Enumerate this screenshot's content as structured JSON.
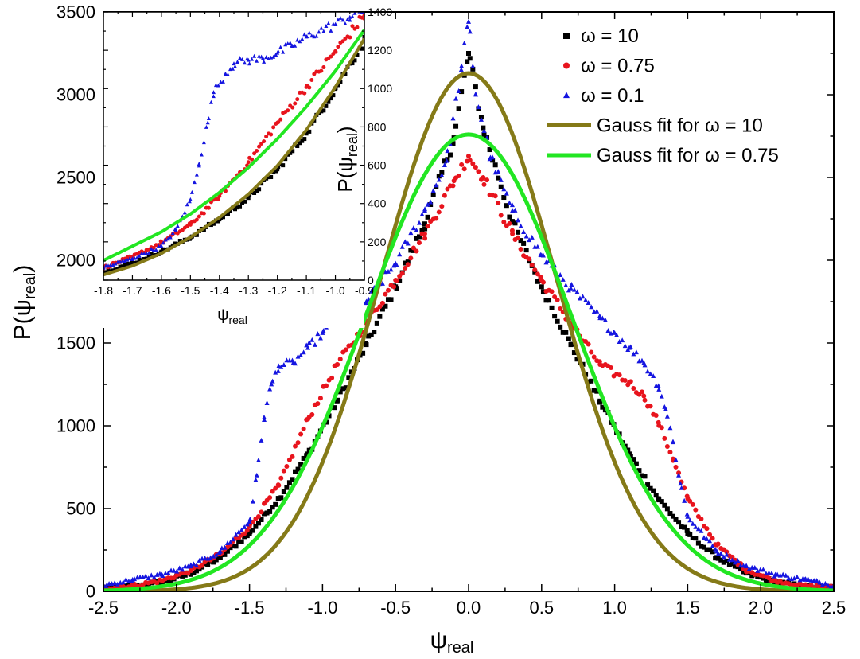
{
  "chart_data": [
    {
      "panel": "main",
      "type": "scatter",
      "xlabel": "ψ",
      "xlabel_sub": "real",
      "ylabel": "P(ψ",
      "ylabel_sub": "real",
      "ylabel_close": ")",
      "xlim": [
        -2.5,
        2.5
      ],
      "ylim": [
        0,
        3500
      ],
      "xticks": [
        "-2.5",
        "-2.0",
        "-1.5",
        "-1.0",
        "-0.5",
        "0.0",
        "0.5",
        "1.0",
        "1.5",
        "2.0",
        "2.5"
      ],
      "yticks": [
        "0",
        "500",
        "1000",
        "1500",
        "2000",
        "2500",
        "3000",
        "3500"
      ],
      "legend_position": "top-right",
      "series": [
        {
          "name": "ω = 10",
          "marker": "square",
          "color": "#000000",
          "points": [
            [
              -2.5,
              22
            ],
            [
              -2.3,
              28
            ],
            [
              -2.1,
              55
            ],
            [
              -1.9,
              110
            ],
            [
              -1.7,
              205
            ],
            [
              -1.5,
              350
            ],
            [
              -1.3,
              560
            ],
            [
              -1.1,
              830
            ],
            [
              -0.9,
              1150
            ],
            [
              -0.7,
              1490
            ],
            [
              -0.5,
              1840
            ],
            [
              -0.3,
              2220
            ],
            [
              -0.1,
              2740
            ],
            [
              0.0,
              3250
            ],
            [
              0.1,
              2800
            ],
            [
              0.3,
              2230
            ],
            [
              0.5,
              1840
            ],
            [
              0.7,
              1490
            ],
            [
              0.9,
              1150
            ],
            [
              1.1,
              830
            ],
            [
              1.3,
              560
            ],
            [
              1.5,
              350
            ],
            [
              1.7,
              205
            ],
            [
              1.9,
              110
            ],
            [
              2.1,
              55
            ],
            [
              2.3,
              28
            ],
            [
              2.5,
              22
            ]
          ]
        },
        {
          "name": "ω = 0.75",
          "marker": "circle",
          "color": "#e8141d",
          "points": [
            [
              -2.5,
              22
            ],
            [
              -2.3,
              33
            ],
            [
              -2.1,
              65
            ],
            [
              -1.9,
              125
            ],
            [
              -1.7,
              225
            ],
            [
              -1.5,
              390
            ],
            [
              -1.3,
              640
            ],
            [
              -1.1,
              1040
            ],
            [
              -0.9,
              1370
            ],
            [
              -0.7,
              1620
            ],
            [
              -0.5,
              1880
            ],
            [
              -0.3,
              2160
            ],
            [
              -0.1,
              2480
            ],
            [
              0.0,
              2630
            ],
            [
              0.1,
              2500
            ],
            [
              0.3,
              2160
            ],
            [
              0.5,
              1880
            ],
            [
              0.7,
              1620
            ],
            [
              0.9,
              1370
            ],
            [
              1.1,
              1260
            ],
            [
              1.2,
              1180
            ],
            [
              1.3,
              1020
            ],
            [
              1.4,
              800
            ],
            [
              1.5,
              560
            ],
            [
              1.7,
              280
            ],
            [
              1.9,
              130
            ],
            [
              2.1,
              65
            ],
            [
              2.3,
              33
            ],
            [
              2.5,
              22
            ]
          ]
        },
        {
          "name": "ω = 0.1",
          "marker": "triangle",
          "color": "#1515e0",
          "points": [
            [
              -2.5,
              35
            ],
            [
              -2.3,
              70
            ],
            [
              -2.1,
              100
            ],
            [
              -1.9,
              150
            ],
            [
              -1.7,
              240
            ],
            [
              -1.5,
              420
            ],
            [
              -1.45,
              700
            ],
            [
              -1.4,
              1050
            ],
            [
              -1.35,
              1250
            ],
            [
              -1.3,
              1360
            ],
            [
              -1.2,
              1380
            ],
            [
              -1.1,
              1470
            ],
            [
              -1.0,
              1560
            ],
            [
              -0.9,
              1640
            ],
            [
              -0.7,
              1750
            ],
            [
              -0.5,
              1980
            ],
            [
              -0.3,
              2300
            ],
            [
              -0.15,
              2600
            ],
            [
              -0.05,
              3150
            ],
            [
              0.0,
              3440
            ],
            [
              0.05,
              3000
            ],
            [
              0.15,
              2620
            ],
            [
              0.3,
              2300
            ],
            [
              0.5,
              2030
            ],
            [
              0.7,
              1830
            ],
            [
              0.9,
              1650
            ],
            [
              1.0,
              1560
            ],
            [
              1.1,
              1470
            ],
            [
              1.2,
              1380
            ],
            [
              1.3,
              1240
            ],
            [
              1.35,
              1100
            ],
            [
              1.4,
              900
            ],
            [
              1.45,
              650
            ],
            [
              1.5,
              450
            ],
            [
              1.7,
              240
            ],
            [
              1.9,
              150
            ],
            [
              2.1,
              100
            ],
            [
              2.3,
              70
            ],
            [
              2.5,
              35
            ]
          ]
        },
        {
          "name": "Gauss fit for ω = 10",
          "type": "line",
          "color": "#857a18",
          "gauss": {
            "amplitude": 3130,
            "mean": 0.0,
            "sigma": 0.6
          }
        },
        {
          "name": "Gauss fit for ω = 0.75",
          "type": "line",
          "color": "#22e622",
          "gauss": {
            "amplitude": 2760,
            "mean": 0.0,
            "sigma": 0.7
          }
        }
      ]
    },
    {
      "panel": "inset",
      "type": "scatter",
      "xlabel": "ψ",
      "xlabel_sub": "real",
      "ylabel": "P(ψ",
      "ylabel_sub": "real",
      "ylabel_close": ")",
      "xlim": [
        -1.8,
        -0.9
      ],
      "ylim": [
        0,
        1500
      ],
      "xticks": [
        "-1.8",
        "-1.7",
        "-1.6",
        "-1.5",
        "-1.4",
        "-1.3",
        "-1.2",
        "-1.1",
        "-1.0",
        "-0.9"
      ],
      "yticks": [
        "0",
        "200",
        "400",
        "600",
        "800",
        "1000",
        "1200",
        "1400"
      ],
      "series_refs": [
        "ω = 10",
        "ω = 0.75",
        "ω = 0.1",
        "Gauss fit for ω = 10",
        "Gauss fit for ω = 0.75"
      ],
      "series": [
        {
          "name": "ω = 10",
          "marker": "square",
          "color": "#000000",
          "points": [
            [
              -1.8,
              45
            ],
            [
              -1.7,
              95
            ],
            [
              -1.6,
              160
            ],
            [
              -1.5,
              240
            ],
            [
              -1.4,
              340
            ],
            [
              -1.3,
              460
            ],
            [
              -1.2,
              620
            ],
            [
              -1.1,
              820
            ],
            [
              -1.0,
              1070
            ],
            [
              -0.9,
              1340
            ]
          ]
        },
        {
          "name": "ω = 0.75",
          "marker": "circle",
          "color": "#e8141d",
          "points": [
            [
              -1.8,
              70
            ],
            [
              -1.7,
              130
            ],
            [
              -1.6,
              210
            ],
            [
              -1.5,
              310
            ],
            [
              -1.4,
              470
            ],
            [
              -1.3,
              660
            ],
            [
              -1.2,
              880
            ],
            [
              -1.1,
              1080
            ],
            [
              -1.0,
              1280
            ],
            [
              -0.9,
              1480
            ]
          ]
        },
        {
          "name": "ω = 0.1",
          "marker": "triangle",
          "color": "#1515e0",
          "points": [
            [
              -1.8,
              70
            ],
            [
              -1.7,
              120
            ],
            [
              -1.6,
              190
            ],
            [
              -1.55,
              280
            ],
            [
              -1.5,
              450
            ],
            [
              -1.47,
              650
            ],
            [
              -1.44,
              880
            ],
            [
              -1.42,
              1050
            ],
            [
              -1.38,
              1150
            ],
            [
              -1.35,
              1210
            ],
            [
              -1.3,
              1230
            ],
            [
              -1.25,
              1240
            ],
            [
              -1.2,
              1270
            ],
            [
              -1.15,
              1310
            ],
            [
              -1.1,
              1360
            ],
            [
              -1.0,
              1430
            ],
            [
              -0.95,
              1470
            ],
            [
              -0.9,
              1510
            ]
          ]
        },
        {
          "name": "Gauss fit for ω = 10",
          "type": "line",
          "color": "#857a18",
          "points": [
            [
              -1.8,
              30
            ],
            [
              -1.7,
              80
            ],
            [
              -1.6,
              150
            ],
            [
              -1.5,
              240
            ],
            [
              -1.4,
              350
            ],
            [
              -1.3,
              480
            ],
            [
              -1.2,
              640
            ],
            [
              -1.1,
              840
            ],
            [
              -1.0,
              1080
            ],
            [
              -0.9,
              1350
            ]
          ]
        },
        {
          "name": "Gauss fit for ω = 0.75",
          "type": "line",
          "color": "#22e622",
          "points": [
            [
              -1.8,
              110
            ],
            [
              -1.7,
              190
            ],
            [
              -1.6,
              270
            ],
            [
              -1.5,
              370
            ],
            [
              -1.4,
              490
            ],
            [
              -1.3,
              630
            ],
            [
              -1.2,
              790
            ],
            [
              -1.1,
              970
            ],
            [
              -1.0,
              1170
            ],
            [
              -0.9,
              1400
            ]
          ]
        }
      ]
    }
  ]
}
